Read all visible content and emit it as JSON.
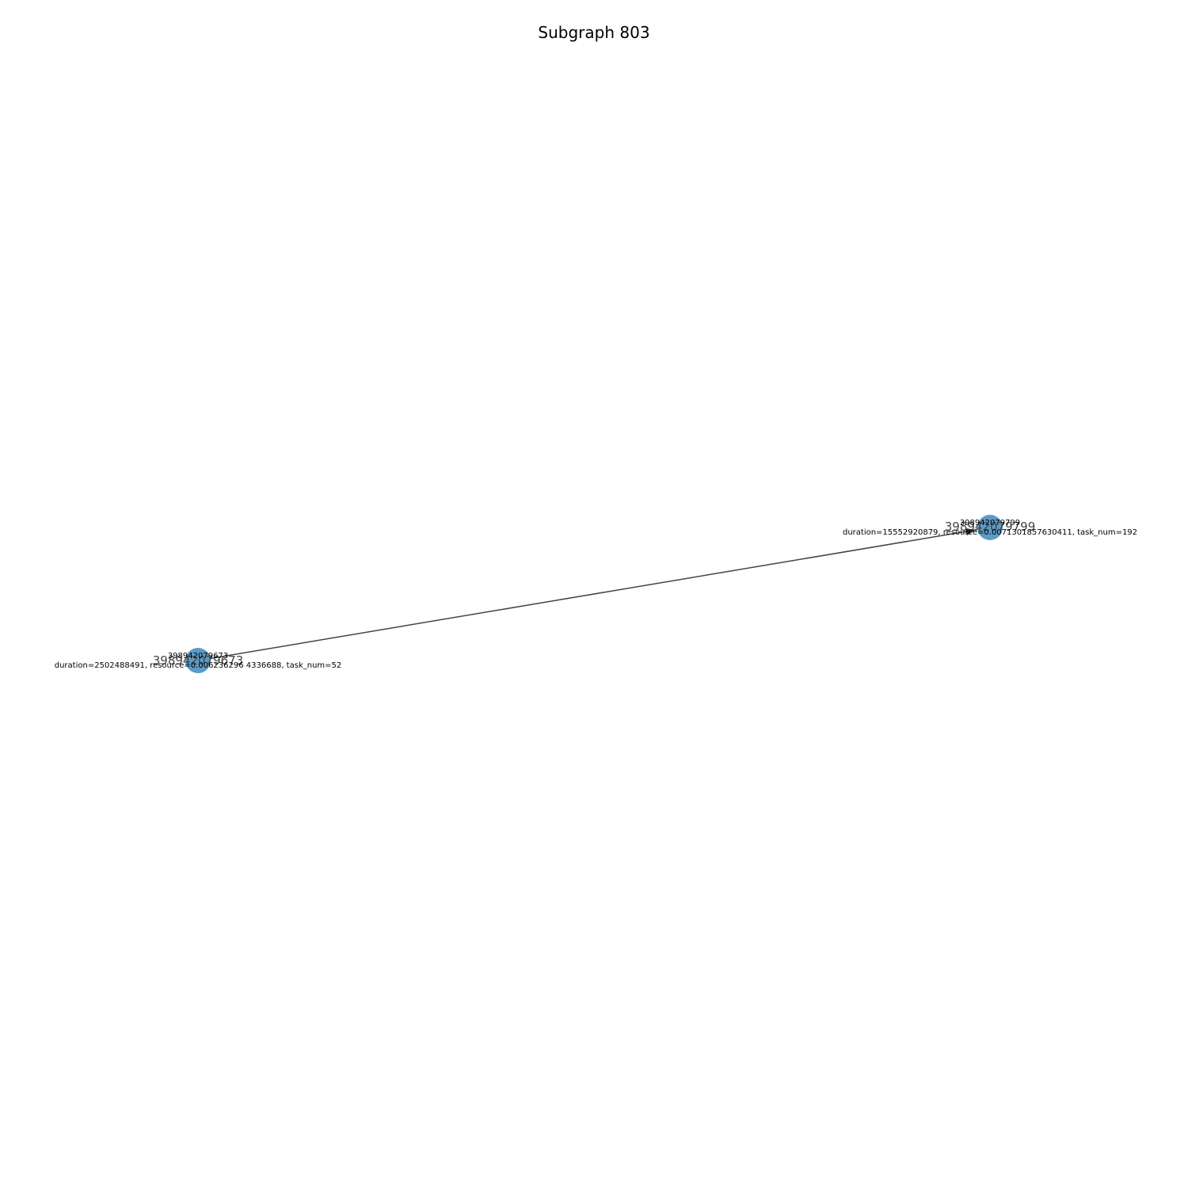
{
  "title": "Subgraph 803",
  "colors": {
    "node_fill": "#5b9bc6",
    "edge": "#444444",
    "background": "#ffffff"
  },
  "nodes": [
    {
      "id_label": "398942079673",
      "detail_name": "398942079673",
      "detail_attrs": "duration=2502488491, resource=0.006236296 4336688, task_num=52"
    },
    {
      "id_label": "398942079799",
      "detail_name": "398942079799",
      "detail_attrs": "duration=15552920879, resource=0.0071301857630411, task_num=192"
    }
  ],
  "edges": [
    {
      "from": "398942079673",
      "to": "398942079799"
    }
  ]
}
